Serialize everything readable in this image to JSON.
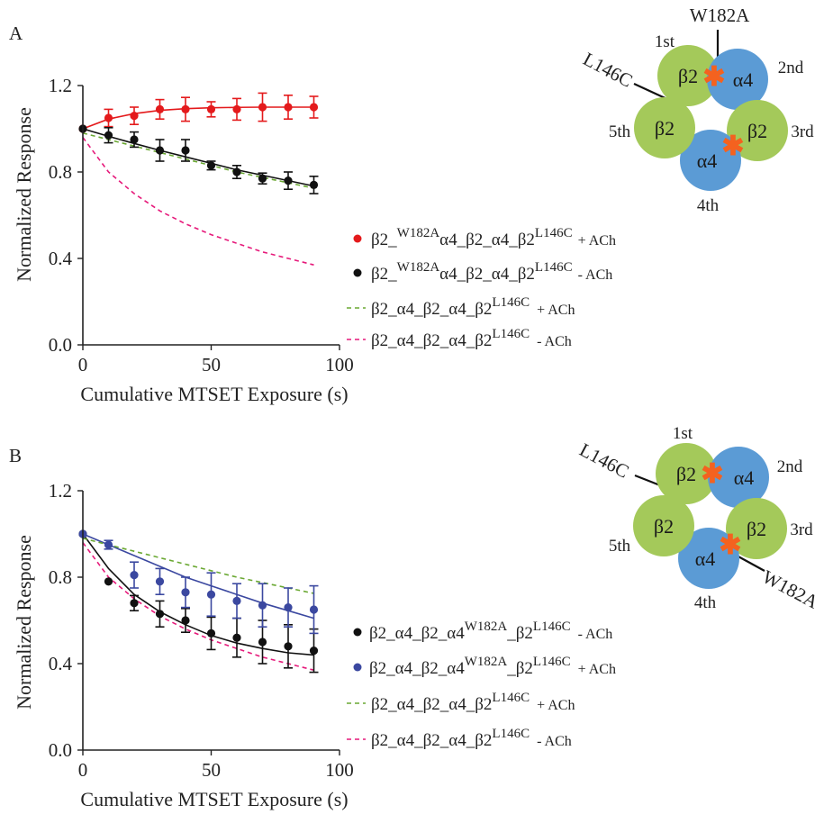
{
  "chart_data": [
    {
      "type": "scatter",
      "panel_label": "A",
      "xlabel": "Cumulative MTSET Exposure (s)",
      "ylabel": "Normalized Response",
      "xlim": [
        0,
        100
      ],
      "ylim": [
        0,
        1.2
      ],
      "x_ticks": [
        0,
        50,
        100
      ],
      "x_tick_labels": [
        "0",
        "50",
        "100"
      ],
      "y_ticks": [
        0.0,
        0.4,
        0.8,
        1.2
      ],
      "y_tick_labels": [
        "0.0",
        "0.4",
        "0.8",
        "1.2"
      ],
      "grid": false,
      "legend_placement": "right",
      "series": [
        {
          "legend_main": "β2_",
          "legend_sup": "W182A",
          "legend_mid": "α4_β2_α4_β2",
          "legend_sup2": "L146C",
          "legend_suffix": "+ ACh",
          "color": "#e41a1c",
          "marker": "dot",
          "line_style": "solid",
          "x": [
            0,
            10,
            20,
            30,
            40,
            50,
            60,
            70,
            80,
            90
          ],
          "y": [
            1.0,
            1.05,
            1.06,
            1.09,
            1.09,
            1.09,
            1.09,
            1.1,
            1.1,
            1.1
          ],
          "error": [
            0,
            0.04,
            0.04,
            0.045,
            0.055,
            0.035,
            0.05,
            0.065,
            0.055,
            0.05
          ],
          "fit": [
            [
              0,
              1.0
            ],
            [
              10,
              1.045
            ],
            [
              20,
              1.07
            ],
            [
              30,
              1.085
            ],
            [
              40,
              1.093
            ],
            [
              50,
              1.097
            ],
            [
              60,
              1.099
            ],
            [
              70,
              1.1
            ],
            [
              80,
              1.1
            ],
            [
              90,
              1.1
            ]
          ]
        },
        {
          "legend_main": "β2_",
          "legend_sup": "W182A",
          "legend_mid": "α4_β2_α4_β2",
          "legend_sup2": "L146C",
          "legend_suffix": "- ACh",
          "color": "#111111",
          "marker": "dot",
          "line_style": "solid",
          "x": [
            0,
            10,
            20,
            30,
            40,
            50,
            60,
            70,
            80,
            90
          ],
          "y": [
            1.0,
            0.97,
            0.95,
            0.9,
            0.9,
            0.83,
            0.8,
            0.77,
            0.76,
            0.74
          ],
          "error": [
            0,
            0.035,
            0.035,
            0.05,
            0.05,
            0.02,
            0.03,
            0.025,
            0.04,
            0.04
          ],
          "fit": [
            [
              0,
              1.0
            ],
            [
              10,
              0.965
            ],
            [
              20,
              0.932
            ],
            [
              30,
              0.9
            ],
            [
              40,
              0.87
            ],
            [
              50,
              0.84
            ],
            [
              60,
              0.81
            ],
            [
              70,
              0.785
            ],
            [
              80,
              0.76
            ],
            [
              90,
              0.735
            ]
          ]
        },
        {
          "legend_main": "β2_α4_β2_α4_β2",
          "legend_sup": "L146C",
          "legend_mid": "",
          "legend_sup2": "",
          "legend_suffix": "+ ACh",
          "color": "#6aa832",
          "marker": "none",
          "line_style": "dashed",
          "fit": [
            [
              0,
              0.98
            ],
            [
              10,
              0.95
            ],
            [
              20,
              0.92
            ],
            [
              30,
              0.89
            ],
            [
              40,
              0.86
            ],
            [
              50,
              0.83
            ],
            [
              60,
              0.8
            ],
            [
              70,
              0.775
            ],
            [
              80,
              0.75
            ],
            [
              90,
              0.725
            ]
          ]
        },
        {
          "legend_main": "β2_α4_β2_α4_β2",
          "legend_sup": "L146C",
          "legend_mid": "",
          "legend_sup2": "",
          "legend_suffix": "- ACh",
          "color": "#e6197a",
          "marker": "none",
          "line_style": "dashed",
          "fit": [
            [
              0,
              0.96
            ],
            [
              10,
              0.8
            ],
            [
              20,
              0.7
            ],
            [
              30,
              0.62
            ],
            [
              40,
              0.56
            ],
            [
              50,
              0.51
            ],
            [
              60,
              0.47
            ],
            [
              70,
              0.43
            ],
            [
              80,
              0.4
            ],
            [
              90,
              0.37
            ]
          ]
        }
      ]
    },
    {
      "type": "scatter",
      "panel_label": "B",
      "xlabel": "Cumulative MTSET Exposure (s)",
      "ylabel": "Normalized Response",
      "xlim": [
        0,
        100
      ],
      "ylim": [
        0,
        1.2
      ],
      "x_ticks": [
        0,
        50,
        100
      ],
      "x_tick_labels": [
        "0",
        "50",
        "100"
      ],
      "y_ticks": [
        0.0,
        0.4,
        0.8,
        1.2
      ],
      "y_tick_labels": [
        "0.0",
        "0.4",
        "0.8",
        "1.2"
      ],
      "grid": false,
      "legend_placement": "right",
      "series": [
        {
          "legend_main": "β2_α4_β2_α4",
          "legend_sup": "W182A",
          "legend_mid": "_β2",
          "legend_sup2": "L146C",
          "legend_suffix": "- ACh",
          "color": "#111111",
          "marker": "dot",
          "line_style": "solid",
          "x": [
            0,
            10,
            20,
            30,
            40,
            50,
            60,
            70,
            80,
            90
          ],
          "y": [
            1.0,
            0.78,
            0.68,
            0.63,
            0.6,
            0.54,
            0.52,
            0.5,
            0.48,
            0.46
          ],
          "error": [
            0,
            0,
            0.035,
            0.06,
            0.055,
            0.075,
            0.09,
            0.1,
            0.1,
            0.1
          ],
          "fit": [
            [
              0,
              1.0
            ],
            [
              10,
              0.84
            ],
            [
              20,
              0.72
            ],
            [
              30,
              0.64
            ],
            [
              40,
              0.58
            ],
            [
              50,
              0.53
            ],
            [
              60,
              0.495
            ],
            [
              70,
              0.47
            ],
            [
              80,
              0.45
            ],
            [
              90,
              0.44
            ]
          ]
        },
        {
          "legend_main": "β2_α4_β2_α4",
          "legend_sup": "W182A",
          "legend_mid": "_β2",
          "legend_sup2": "L146C",
          "legend_suffix": "+ ACh",
          "color": "#3b48a0",
          "marker": "dot",
          "line_style": "solid",
          "x": [
            0,
            10,
            20,
            30,
            40,
            50,
            60,
            70,
            80,
            90
          ],
          "y": [
            1.0,
            0.95,
            0.81,
            0.78,
            0.73,
            0.72,
            0.69,
            0.67,
            0.66,
            0.65
          ],
          "error": [
            0,
            0.02,
            0.06,
            0.06,
            0.07,
            0.1,
            0.08,
            0.1,
            0.09,
            0.11
          ],
          "fit": [
            [
              0,
              1.0
            ],
            [
              10,
              0.95
            ],
            [
              20,
              0.9
            ],
            [
              30,
              0.85
            ],
            [
              40,
              0.8
            ],
            [
              50,
              0.76
            ],
            [
              60,
              0.72
            ],
            [
              70,
              0.68
            ],
            [
              80,
              0.645
            ],
            [
              90,
              0.61
            ]
          ]
        },
        {
          "legend_main": "β2_α4_β2_α4_β2",
          "legend_sup": "L146C",
          "legend_mid": "",
          "legend_sup2": "",
          "legend_suffix": "+ ACh",
          "color": "#6aa832",
          "marker": "none",
          "line_style": "dashed",
          "fit": [
            [
              0,
              0.98
            ],
            [
              10,
              0.95
            ],
            [
              20,
              0.92
            ],
            [
              30,
              0.89
            ],
            [
              40,
              0.86
            ],
            [
              50,
              0.83
            ],
            [
              60,
              0.8
            ],
            [
              70,
              0.775
            ],
            [
              80,
              0.75
            ],
            [
              90,
              0.725
            ]
          ]
        },
        {
          "legend_main": "β2_α4_β2_α4_β2",
          "legend_sup": "L146C",
          "legend_mid": "",
          "legend_sup2": "",
          "legend_suffix": "- ACh",
          "color": "#e6197a",
          "marker": "none",
          "line_style": "dashed",
          "fit": [
            [
              0,
              0.96
            ],
            [
              10,
              0.8
            ],
            [
              20,
              0.7
            ],
            [
              30,
              0.62
            ],
            [
              40,
              0.56
            ],
            [
              50,
              0.51
            ],
            [
              60,
              0.47
            ],
            [
              70,
              0.43
            ],
            [
              80,
              0.4
            ],
            [
              90,
              0.37
            ]
          ]
        }
      ]
    }
  ],
  "diagrams": [
    {
      "subunits": [
        "β2",
        "α4",
        "β2",
        "α4",
        "β2"
      ],
      "subunit_kinds": [
        "beta",
        "alpha",
        "beta",
        "alpha",
        "beta"
      ],
      "positions": [
        "1st",
        "2nd",
        "3rd",
        "4th",
        "5th"
      ],
      "mutation_top": "W182A",
      "mutation_side": "L146C",
      "star_glyph": "✱"
    },
    {
      "subunits": [
        "β2",
        "α4",
        "β2",
        "α4",
        "β2"
      ],
      "subunit_kinds": [
        "beta",
        "alpha",
        "beta",
        "alpha",
        "beta"
      ],
      "positions": [
        "1st",
        "2nd",
        "3rd",
        "4th",
        "5th"
      ],
      "mutation_top": "W182A",
      "mutation_side": "L146C",
      "star_glyph": "✱"
    }
  ],
  "colors": {
    "beta_subunit": "#a4c95a",
    "alpha_subunit": "#5b9bd5",
    "star": "#f4621f",
    "axis": "#222222"
  }
}
